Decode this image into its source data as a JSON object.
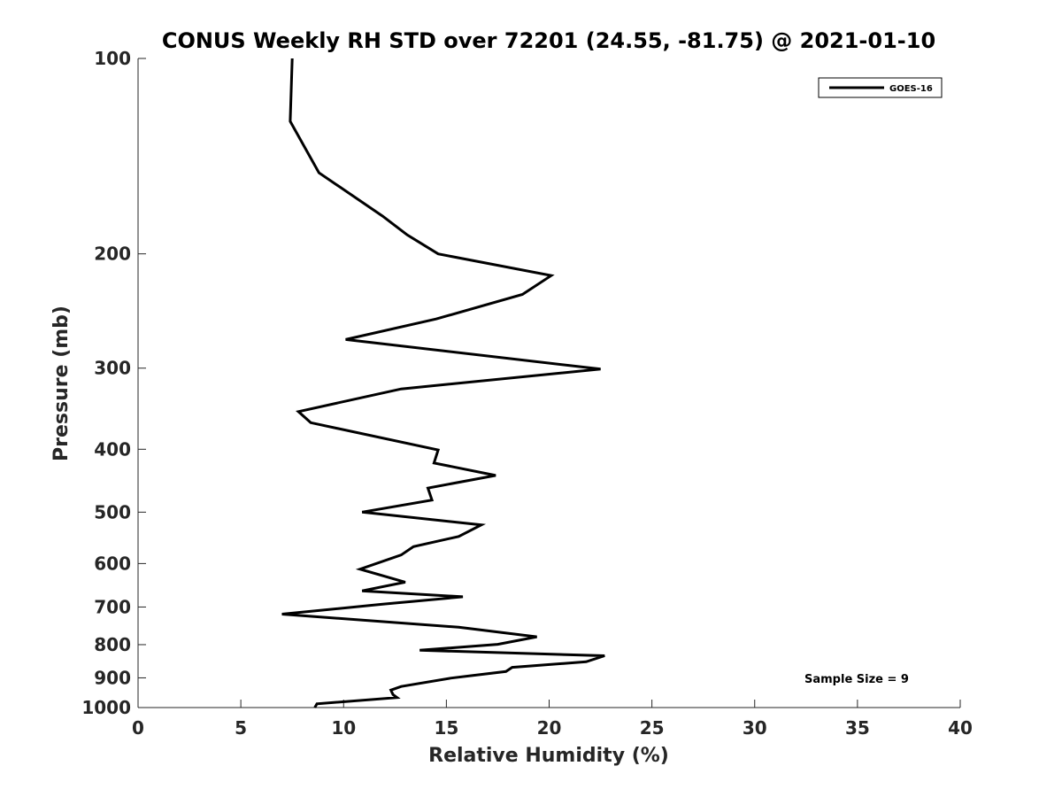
{
  "chart_data": {
    "type": "line",
    "title": "CONUS Weekly RH STD over 72201 (24.55, -81.75) @ 2021-01-10",
    "xlabel": "Relative Humidity (%)",
    "ylabel": "Pressure (mb)",
    "xlim": [
      0,
      40
    ],
    "ylim": [
      100,
      1000
    ],
    "yscale": "log",
    "y_reversed": true,
    "x_ticks": [
      0,
      5,
      10,
      15,
      20,
      25,
      30,
      35,
      40
    ],
    "x_tick_labels": [
      "0",
      "5",
      "10",
      "15",
      "20",
      "25",
      "30",
      "35",
      "40"
    ],
    "y_ticks": [
      100,
      200,
      300,
      400,
      500,
      600,
      700,
      800,
      900,
      1000
    ],
    "y_tick_labels": [
      "100",
      "200",
      "300",
      "400",
      "500",
      "600",
      "700",
      "800",
      "900",
      "1000"
    ],
    "grid": false,
    "legend_location": "top-right",
    "annotation": "Sample Size = 9",
    "series": [
      {
        "name": "GOES-16",
        "color": "#000000",
        "x": [
          7.5,
          7.4,
          8.8,
          11.9,
          13.1,
          14.6,
          20.1,
          18.7,
          14.5,
          10.1,
          22.5,
          12.8,
          7.8,
          8.4,
          14.6,
          14.4,
          17.4,
          14.1,
          14.3,
          10.9,
          16.7,
          15.6,
          13.4,
          12.8,
          10.8,
          13.0,
          10.9,
          15.8,
          11.9,
          7.0,
          15.6,
          19.4,
          17.5,
          13.7,
          22.7,
          21.8,
          18.2,
          17.9,
          15.2,
          12.8,
          12.3,
          12.4,
          12.6,
          8.7,
          8.6
        ],
        "y": [
          100,
          125,
          150,
          175,
          187,
          200,
          216,
          231,
          252,
          271,
          301,
          323,
          350,
          364,
          401,
          420,
          439,
          459,
          479,
          500,
          523,
          545,
          565,
          582,
          612,
          641,
          661,
          675,
          693,
          718,
          752,
          778,
          799,
          816,
          832,
          850,
          867,
          880,
          901,
          928,
          940,
          955,
          965,
          987,
          1000
        ]
      }
    ]
  }
}
